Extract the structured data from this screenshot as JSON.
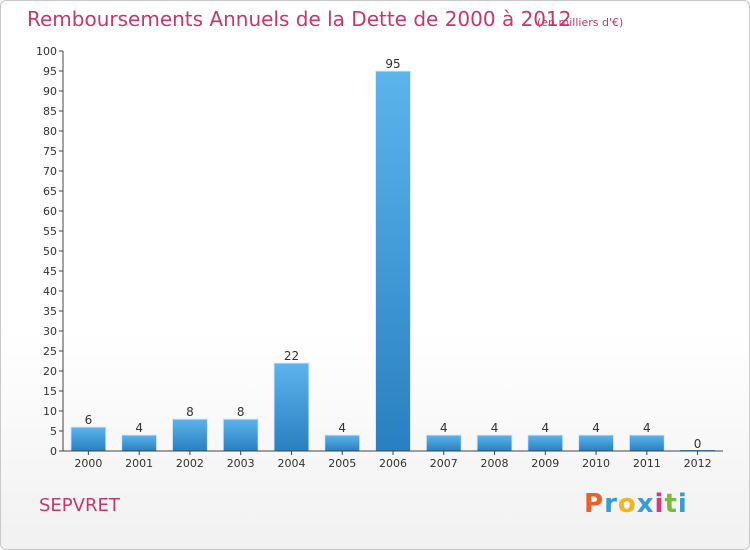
{
  "header": {
    "title": "Remboursements Annuels de la Dette de 2000 à 2012",
    "unit": "(en milliers d'€)"
  },
  "footer": {
    "place": "SEPVRET",
    "logo_letters": [
      "P",
      "r",
      "o",
      "x",
      "i",
      "t",
      "i"
    ],
    "logo_colors": [
      "#e8612a",
      "#3b9bd8",
      "#f2b51c",
      "#3b9bd8",
      "#d6387f",
      "#7bbd3a",
      "#3b9bd8"
    ]
  },
  "chart_data": {
    "type": "bar",
    "title": "Remboursements Annuels de la Dette de 2000 à 2012",
    "subtitle": "(en milliers d'€)",
    "categories": [
      "2000",
      "2001",
      "2002",
      "2003",
      "2004",
      "2005",
      "2006",
      "2007",
      "2008",
      "2009",
      "2010",
      "2011",
      "2012"
    ],
    "values": [
      6,
      4,
      8,
      8,
      22,
      4,
      95,
      4,
      4,
      4,
      4,
      4,
      0
    ],
    "value_labels": [
      "6",
      "4",
      "8",
      "8",
      "22",
      "4",
      "95",
      "4",
      "4",
      "4",
      "4",
      "4",
      "0"
    ],
    "ylim": [
      0,
      100
    ],
    "yticks": [
      "0",
      "5",
      "10",
      "15",
      "20",
      "25",
      "30",
      "35",
      "40",
      "45",
      "50",
      "55",
      "60",
      "65",
      "70",
      "75",
      "80",
      "85",
      "90",
      "95",
      "100"
    ],
    "xlabel": "",
    "ylabel": "",
    "grid": false,
    "bar_color": "#3d9ce0",
    "title_color": "#c2386f"
  }
}
